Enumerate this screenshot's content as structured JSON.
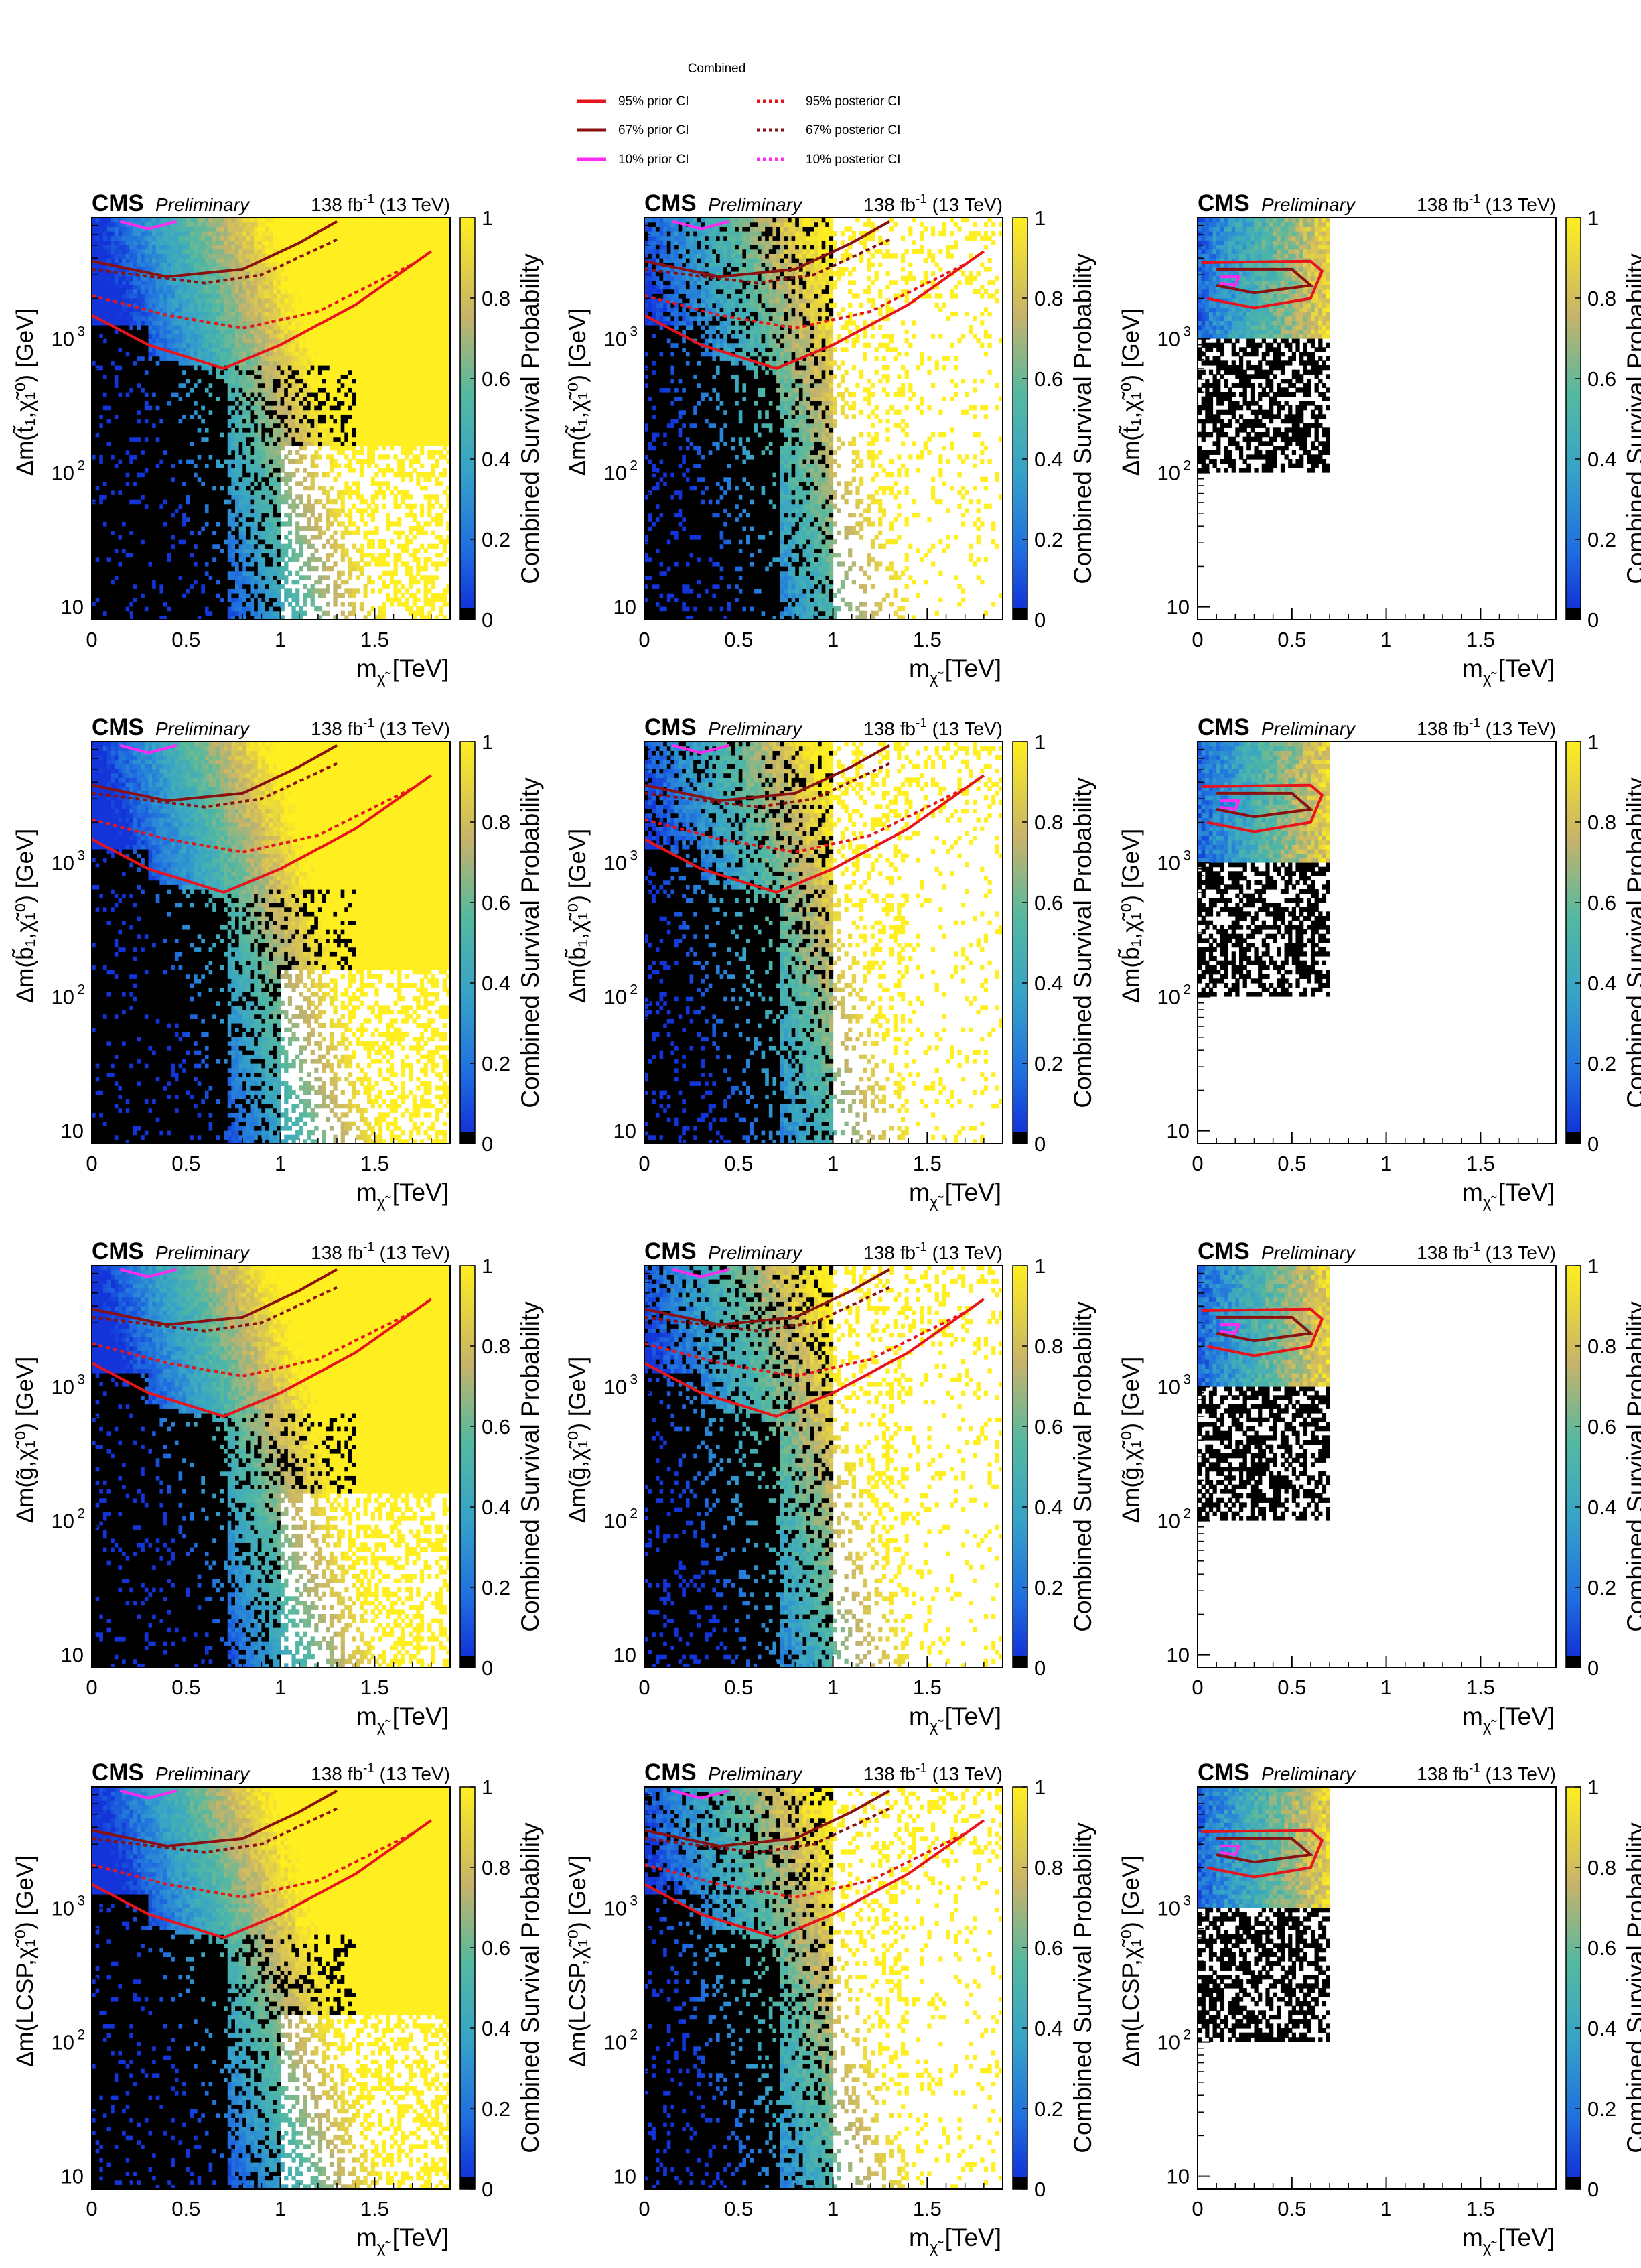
{
  "legend": {
    "title": "Combined",
    "entries": [
      {
        "label": "95%  prior CI",
        "color": "#e8141c",
        "style": "solid"
      },
      {
        "label": "67%  prior CI",
        "color": "#8b1010",
        "style": "solid"
      },
      {
        "label": "10%  prior CI",
        "color": "#ff2bf0",
        "style": "solid"
      },
      {
        "label": "95% posterior CI",
        "color": "#e8141c",
        "style": "dotted"
      },
      {
        "label": "67% posterior CI",
        "color": "#8b1010",
        "style": "dotted"
      },
      {
        "label": "10% posterior CI",
        "color": "#ff2bf0",
        "style": "dotted"
      }
    ]
  },
  "common": {
    "cms": "CMS",
    "preliminary": "Preliminary",
    "lumi": "138 fb",
    "lumi_sup": "-1",
    "energy": "(13 TeV)",
    "z_title": "Combined Survival Probability",
    "x_title": "m",
    "x_unit": "[TeV]",
    "x_sub": "χ̃",
    "x_sub_sup": "0",
    "x_sub_sub": "1",
    "x_ticks": [
      "0",
      "0.5",
      "1",
      "1.5"
    ],
    "y_ticks": [
      "10",
      "10",
      "10"
    ],
    "y_tick_exps": [
      "",
      "2",
      "3"
    ],
    "z_ticks": [
      "0",
      "0.2",
      "0.4",
      "0.6",
      "0.8",
      "1"
    ]
  },
  "chart_data": [
    {
      "type": "heatmap",
      "row": 0,
      "col": 0,
      "ylabel": "Δm(t̃₁,χ̃₁⁰) [GeV]",
      "y_particle": "t̃",
      "y_sub": "1",
      "xlabel": "m χ̃₁⁰ [TeV]",
      "xlim": [
        0,
        1.9
      ],
      "ylim": [
        8,
        8000
      ],
      "zlim": [
        0,
        1
      ],
      "variant": "prior",
      "xmax_data": 1.9
    },
    {
      "type": "heatmap",
      "row": 0,
      "col": 1,
      "ylabel": "Δm(t̃₁,χ̃₁⁰) [GeV]",
      "y_particle": "t̃",
      "y_sub": "1",
      "xlabel": "m χ̃₁⁰ [TeV]",
      "xlim": [
        0,
        1.9
      ],
      "ylim": [
        8,
        8000
      ],
      "zlim": [
        0,
        1
      ],
      "variant": "sampled",
      "xmax_data": 1.9
    },
    {
      "type": "heatmap",
      "row": 0,
      "col": 2,
      "ylabel": "Δm(t̃₁,χ̃₁⁰) [GeV]",
      "y_particle": "t̃",
      "y_sub": "1",
      "xlabel": "m χ̃₁⁰ [TeV]",
      "xlim": [
        0,
        1.9
      ],
      "ylim": [
        8,
        8000
      ],
      "zlim": [
        0,
        1
      ],
      "variant": "posterior",
      "xmax_data": 0.7
    },
    {
      "type": "heatmap",
      "row": 1,
      "col": 0,
      "ylabel": "Δm(b̃₁,χ̃₁⁰) [GeV]",
      "y_particle": "b̃",
      "y_sub": "1",
      "xlabel": "m χ̃₁⁰ [TeV]",
      "xlim": [
        0,
        1.9
      ],
      "ylim": [
        8,
        8000
      ],
      "zlim": [
        0,
        1
      ],
      "variant": "prior",
      "xmax_data": 1.9
    },
    {
      "type": "heatmap",
      "row": 1,
      "col": 1,
      "ylabel": "Δm(b̃₁,χ̃₁⁰) [GeV]",
      "y_particle": "b̃",
      "y_sub": "1",
      "xlabel": "m χ̃₁⁰ [TeV]",
      "xlim": [
        0,
        1.9
      ],
      "ylim": [
        8,
        8000
      ],
      "zlim": [
        0,
        1
      ],
      "variant": "sampled",
      "xmax_data": 1.9
    },
    {
      "type": "heatmap",
      "row": 1,
      "col": 2,
      "ylabel": "Δm(b̃₁,χ̃₁⁰) [GeV]",
      "y_particle": "b̃",
      "y_sub": "1",
      "xlabel": "m χ̃₁⁰ [TeV]",
      "xlim": [
        0,
        1.9
      ],
      "ylim": [
        8,
        8000
      ],
      "zlim": [
        0,
        1
      ],
      "variant": "posterior",
      "xmax_data": 0.7
    },
    {
      "type": "heatmap",
      "row": 2,
      "col": 0,
      "ylabel": "Δm(g̃,χ̃₁⁰) [GeV]",
      "y_particle": "g̃",
      "y_sub": "",
      "xlabel": "m χ̃₁⁰ [TeV]",
      "xlim": [
        0,
        1.9
      ],
      "ylim": [
        8,
        8000
      ],
      "zlim": [
        0,
        1
      ],
      "variant": "prior",
      "xmax_data": 1.9
    },
    {
      "type": "heatmap",
      "row": 2,
      "col": 1,
      "ylabel": "Δm(g̃,χ̃₁⁰) [GeV]",
      "y_particle": "g̃",
      "y_sub": "",
      "xlabel": "m χ̃₁⁰ [TeV]",
      "xlim": [
        0,
        1.9
      ],
      "ylim": [
        8,
        8000
      ],
      "zlim": [
        0,
        1
      ],
      "variant": "sampled",
      "xmax_data": 1.9
    },
    {
      "type": "heatmap",
      "row": 2,
      "col": 2,
      "ylabel": "Δm(g̃,χ̃₁⁰) [GeV]",
      "y_particle": "g̃",
      "y_sub": "",
      "xlabel": "m χ̃₁⁰ [TeV]",
      "xlim": [
        0,
        1.9
      ],
      "ylim": [
        8,
        8000
      ],
      "zlim": [
        0,
        1
      ],
      "variant": "posterior",
      "xmax_data": 0.7
    },
    {
      "type": "heatmap",
      "row": 3,
      "col": 0,
      "ylabel": "Δm(LCSP,χ̃₁⁰) [GeV]",
      "y_particle": "LCSP",
      "y_sub": "",
      "xlabel": "m χ̃₁⁰ [TeV]",
      "xlim": [
        0,
        1.9
      ],
      "ylim": [
        8,
        8000
      ],
      "zlim": [
        0,
        1
      ],
      "variant": "prior",
      "xmax_data": 1.9
    },
    {
      "type": "heatmap",
      "row": 3,
      "col": 1,
      "ylabel": "Δm(LCSP,χ̃₁⁰) [GeV]",
      "y_particle": "LCSP",
      "y_sub": "",
      "xlabel": "m χ̃₁⁰ [TeV]",
      "xlim": [
        0,
        1.9
      ],
      "ylim": [
        8,
        8000
      ],
      "zlim": [
        0,
        1
      ],
      "variant": "sampled",
      "xmax_data": 1.9
    },
    {
      "type": "heatmap",
      "row": 3,
      "col": 2,
      "ylabel": "Δm(LCSP,χ̃₁⁰) [GeV]",
      "y_particle": "LCSP",
      "y_sub": "",
      "xlabel": "m χ̃₁⁰ [TeV]",
      "xlim": [
        0,
        1.9
      ],
      "ylim": [
        8,
        8000
      ],
      "zlim": [
        0,
        1
      ],
      "variant": "posterior",
      "xmax_data": 0.7
    }
  ]
}
